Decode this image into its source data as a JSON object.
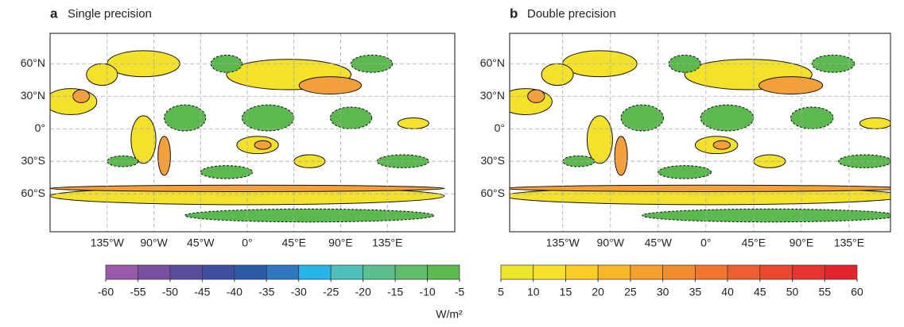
{
  "chart_data": [
    {
      "type": "map",
      "panel": "a",
      "title": "Single precision",
      "xlim": [
        -190,
        200
      ],
      "ylim": [
        -95,
        88
      ],
      "xticks": [
        {
          "value": -135,
          "label": "135°W"
        },
        {
          "value": -90,
          "label": "90°W"
        },
        {
          "value": -45,
          "label": "45°W"
        },
        {
          "value": 0,
          "label": "0°"
        },
        {
          "value": 45,
          "label": "45°E"
        },
        {
          "value": 90,
          "label": "90°E"
        },
        {
          "value": 135,
          "label": "135°E"
        }
      ],
      "yticks": [
        {
          "value": 60,
          "label": "60°N"
        },
        {
          "value": 30,
          "label": "30°N"
        },
        {
          "value": 0,
          "label": "0°"
        },
        {
          "value": -30,
          "label": "30°S"
        },
        {
          "value": -60,
          "label": "60°S"
        }
      ],
      "grid": true
    },
    {
      "type": "map",
      "panel": "b",
      "title": "Double precision",
      "xlim": [
        -185,
        174
      ],
      "ylim": [
        -95,
        88
      ],
      "xticks": [
        {
          "value": -135,
          "label": "135°W"
        },
        {
          "value": -90,
          "label": "90°W"
        },
        {
          "value": -45,
          "label": "45°W"
        },
        {
          "value": 0,
          "label": "0°"
        },
        {
          "value": 45,
          "label": "45°E"
        },
        {
          "value": 90,
          "label": "90°E"
        },
        {
          "value": 135,
          "label": "135°E"
        }
      ],
      "yticks": [
        {
          "value": 60,
          "label": "60°N"
        },
        {
          "value": 30,
          "label": "30°N"
        },
        {
          "value": 0,
          "label": "0°"
        },
        {
          "value": -30,
          "label": "30°S"
        },
        {
          "value": -60,
          "label": "60°S"
        }
      ],
      "grid": true
    },
    {
      "type": "colorbar",
      "ticks": [
        -60,
        -55,
        -50,
        -45,
        -40,
        -35,
        -30,
        -25,
        -20,
        -15,
        -10,
        -5
      ],
      "colors": [
        "#9b5aa9",
        "#7a4ea0",
        "#5b4b9c",
        "#3e4f9f",
        "#2b5aa7",
        "#2f76bd",
        "#27b4e6",
        "#4fc1bd",
        "#5cbf8f",
        "#5fbd6b",
        "#5bb94f"
      ]
    },
    {
      "type": "colorbar",
      "ticks": [
        5,
        10,
        15,
        20,
        25,
        30,
        35,
        40,
        45,
        50,
        55,
        60
      ],
      "colors": [
        "#ece62a",
        "#f8e12c",
        "#fbcd25",
        "#f9b628",
        "#f69f2c",
        "#f38b2e",
        "#f0752f",
        "#ee5f2f",
        "#eb482f",
        "#e8342f",
        "#e4252d"
      ]
    }
  ],
  "units": "W/m²"
}
